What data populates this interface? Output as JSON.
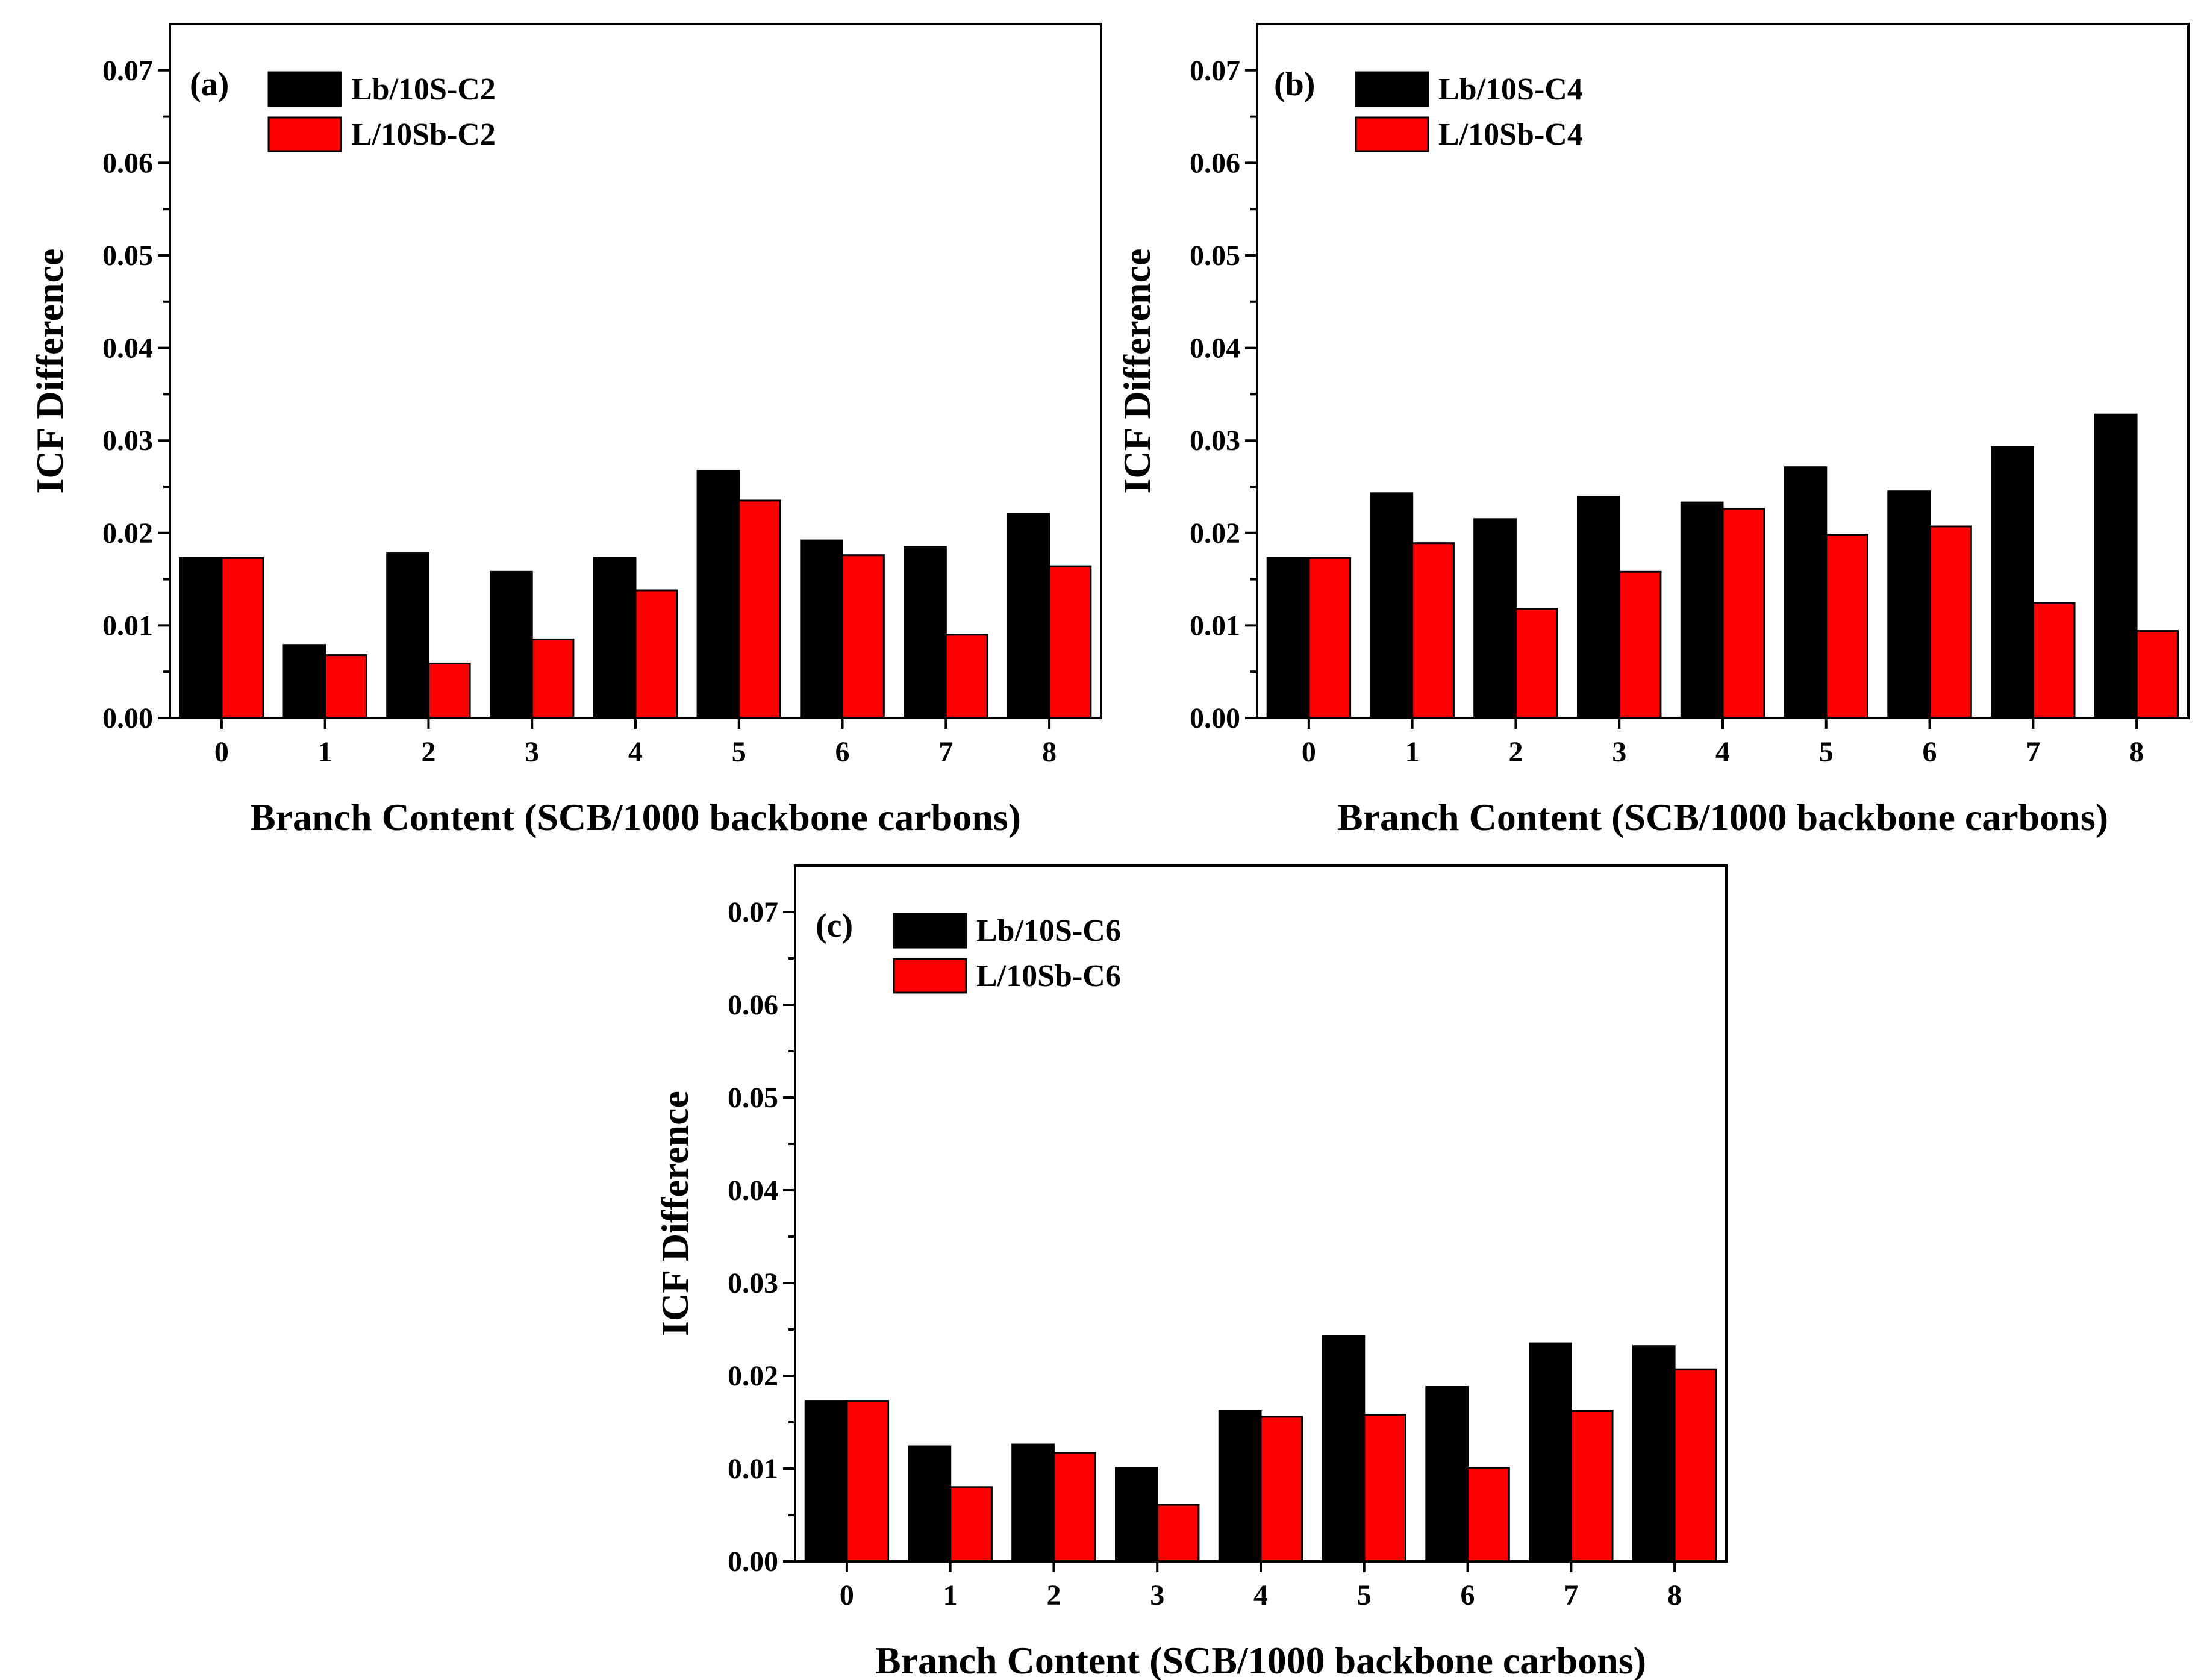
{
  "colors": {
    "series_black": "#000000",
    "series_red": "#ff0000",
    "axis": "#000000",
    "background": "#ffffff"
  },
  "chart_data": [
    {
      "panel": "(a)",
      "type": "bar",
      "xlabel": "Branch Content (SCB/1000 backbone carbons)",
      "ylabel": "ICF Difference",
      "ylim": [
        0,
        0.075
      ],
      "yticks": [
        "0.00",
        "0.01",
        "0.02",
        "0.03",
        "0.04",
        "0.05",
        "0.06",
        "0.07"
      ],
      "categories": [
        "0",
        "1",
        "2",
        "3",
        "4",
        "5",
        "6",
        "7",
        "8"
      ],
      "legend_position": "top-left",
      "grid": false,
      "series": [
        {
          "name": "Lb/10S-C2",
          "color": "#000000",
          "values": [
            0.0173,
            0.0079,
            0.0178,
            0.0158,
            0.0173,
            0.0267,
            0.0192,
            0.0185,
            0.0221
          ]
        },
        {
          "name": "L/10Sb-C2",
          "color": "#ff0000",
          "values": [
            0.0173,
            0.0068,
            0.0059,
            0.0085,
            0.0138,
            0.0235,
            0.0176,
            0.009,
            0.0164
          ]
        }
      ]
    },
    {
      "panel": "(b)",
      "type": "bar",
      "xlabel": "Branch Content (SCB/1000 backbone carbons)",
      "ylabel": "ICF Difference",
      "ylim": [
        0,
        0.075
      ],
      "yticks": [
        "0.00",
        "0.01",
        "0.02",
        "0.03",
        "0.04",
        "0.05",
        "0.06",
        "0.07"
      ],
      "categories": [
        "0",
        "1",
        "2",
        "3",
        "4",
        "5",
        "6",
        "7",
        "8"
      ],
      "legend_position": "top-left",
      "grid": false,
      "series": [
        {
          "name": "Lb/10S-C4",
          "color": "#000000",
          "values": [
            0.0173,
            0.0243,
            0.0215,
            0.0239,
            0.0233,
            0.0271,
            0.0245,
            0.0293,
            0.0328
          ]
        },
        {
          "name": "L/10Sb-C4",
          "color": "#ff0000",
          "values": [
            0.0173,
            0.0189,
            0.0118,
            0.0158,
            0.0226,
            0.0198,
            0.0207,
            0.0124,
            0.0094
          ]
        }
      ]
    },
    {
      "panel": "(c)",
      "type": "bar",
      "xlabel": "Branch Content (SCB/1000 backbone carbons)",
      "ylabel": "ICF Difference",
      "ylim": [
        0,
        0.075
      ],
      "yticks": [
        "0.00",
        "0.01",
        "0.02",
        "0.03",
        "0.04",
        "0.05",
        "0.06",
        "0.07"
      ],
      "categories": [
        "0",
        "1",
        "2",
        "3",
        "4",
        "5",
        "6",
        "7",
        "8"
      ],
      "legend_position": "top-left",
      "grid": false,
      "series": [
        {
          "name": "Lb/10S-C6",
          "color": "#000000",
          "values": [
            0.0173,
            0.0124,
            0.0126,
            0.0101,
            0.0162,
            0.0243,
            0.0188,
            0.0235,
            0.0232
          ]
        },
        {
          "name": "L/10Sb-C6",
          "color": "#ff0000",
          "values": [
            0.0173,
            0.008,
            0.0117,
            0.0061,
            0.0156,
            0.0158,
            0.0101,
            0.0162,
            0.0207
          ]
        }
      ]
    }
  ]
}
